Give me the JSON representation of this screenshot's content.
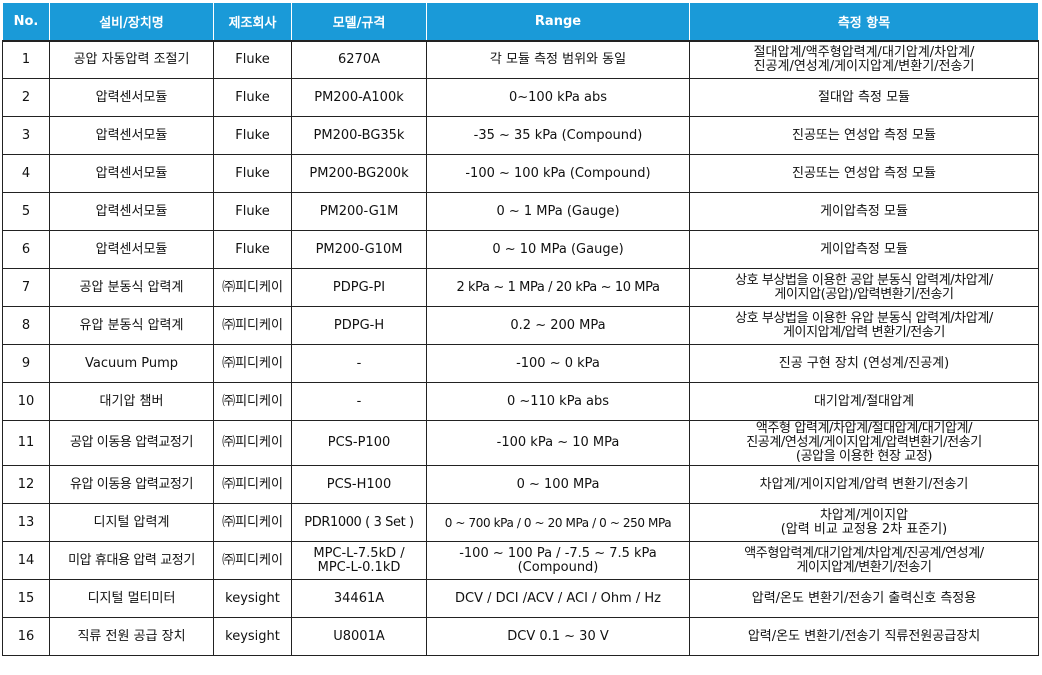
{
  "table": {
    "headers": [
      "No.",
      "설비/장치명",
      "제조회사",
      "모델/규격",
      "Range",
      "측정 항목"
    ],
    "rows": [
      {
        "no": "1",
        "name": "공압 자동압력 조절기",
        "maker": "Fluke",
        "model": "6270A",
        "range": "각 모듈 측정 범위와 동일",
        "item": "절대압계/액주형압력계/대기압계/차압계/\n진공계/연성계/게이지압계/변환기/전송기"
      },
      {
        "no": "2",
        "name": "압력센서모듈",
        "maker": "Fluke",
        "model": "PM200-A100k",
        "range": "0~100 kPa abs",
        "item": "절대압 측정 모듈"
      },
      {
        "no": "3",
        "name": "압력센서모듈",
        "maker": "Fluke",
        "model": "PM200-BG35k",
        "range": "-35 ~ 35 kPa (Compound)",
        "item": "진공또는 연성압 측정 모듈"
      },
      {
        "no": "4",
        "name": "압력센서모듈",
        "maker": "Fluke",
        "model": "PM200-BG200k",
        "range": "-100 ~ 100 kPa (Compound)",
        "item": "진공또는 연성압 측정 모듈"
      },
      {
        "no": "5",
        "name": "압력센서모듈",
        "maker": "Fluke",
        "model": "PM200-G1M",
        "range": "0 ~ 1 MPa (Gauge)",
        "item": "게이압측정 모듈"
      },
      {
        "no": "6",
        "name": "압력센서모듈",
        "maker": "Fluke",
        "model": "PM200-G10M",
        "range": "0 ~ 10 MPa (Gauge)",
        "item": "게이압측정 모듈"
      },
      {
        "no": "7",
        "name": "공압 분동식 압력계",
        "maker": "㈜피디케이",
        "model": "PDPG-PI",
        "range": "2 kPa ~ 1 MPa / 20 kPa ~ 10 MPa",
        "item": "상호 부상법을 이용한 공압 분동식 압력계/차압계/\n게이지압(공압)/압력변환기/전송기"
      },
      {
        "no": "8",
        "name": "유압 분동식 압력계",
        "maker": "㈜피디케이",
        "model": "PDPG-H",
        "range": "0.2 ~ 200 MPa",
        "item": "상호 부상법을 이용한 유압 분동식 압력계/차압계/\n게이지압계/압력 변환기/전송기"
      },
      {
        "no": "9",
        "name": "Vacuum Pump",
        "maker": "㈜피디케이",
        "model": "-",
        "range": "-100 ~ 0 kPa",
        "item": "진공 구현 장치 (연성계/진공계)"
      },
      {
        "no": "10",
        "name": "대기압 챔버",
        "maker": "㈜피디케이",
        "model": "-",
        "range": "0 ~110 kPa abs",
        "item": "대기압계/절대압계"
      },
      {
        "no": "11",
        "name": "공압 이동용 압력교정기",
        "maker": "㈜피디케이",
        "model": "PCS-P100",
        "range": "-100 kPa ~ 10 MPa",
        "item": "액주형 압력계/차압계/절대압계/대기압계/\n진공계/연성계/게이지압계/압력변환기/전송기\n(공압을 이용한 현장 교정)"
      },
      {
        "no": "12",
        "name": "유압 이동용 압력교정기",
        "maker": "㈜피디케이",
        "model": "PCS-H100",
        "range": "0 ~ 100 MPa",
        "item": "차압계/게이지압계/압력 변환기/전송기"
      },
      {
        "no": "13",
        "name": "디지털 압력계",
        "maker": "㈜피디케이",
        "model": "PDR1000 ( 3 Set )",
        "range": "0 ~ 700 kPa / 0 ~ 20 MPa / 0 ~ 250 MPa",
        "item": "차압계/게이지압\n(압력 비교 교정용 2차 표준기)"
      },
      {
        "no": "14",
        "name": "미압 휴대용 압력 교정기",
        "maker": "㈜피디케이",
        "model": "MPC-L-7.5kD /\nMPC-L-0.1kD",
        "range": "-100 ~ 100 Pa / -7.5 ~ 7.5 kPa\n(Compound)",
        "item": "액주형압력계/대기압계/차압계/진공계/연성계/\n게이지압계/변환기/전송기"
      },
      {
        "no": "15",
        "name": "디지털 멀티미터",
        "maker": "keysight",
        "model": "34461A",
        "range": "DCV / DCI /ACV / ACI / Ohm / Hz",
        "item": "압력/온도 변환기/전송기 출력신호 측정용"
      },
      {
        "no": "16",
        "name": "직류 전원 공급 장치",
        "maker": "keysight",
        "model": "U8001A",
        "range": "DCV 0.1 ~ 30 V",
        "item": "압력/온도 변환기/전송기 직류전원공급장치"
      }
    ]
  }
}
